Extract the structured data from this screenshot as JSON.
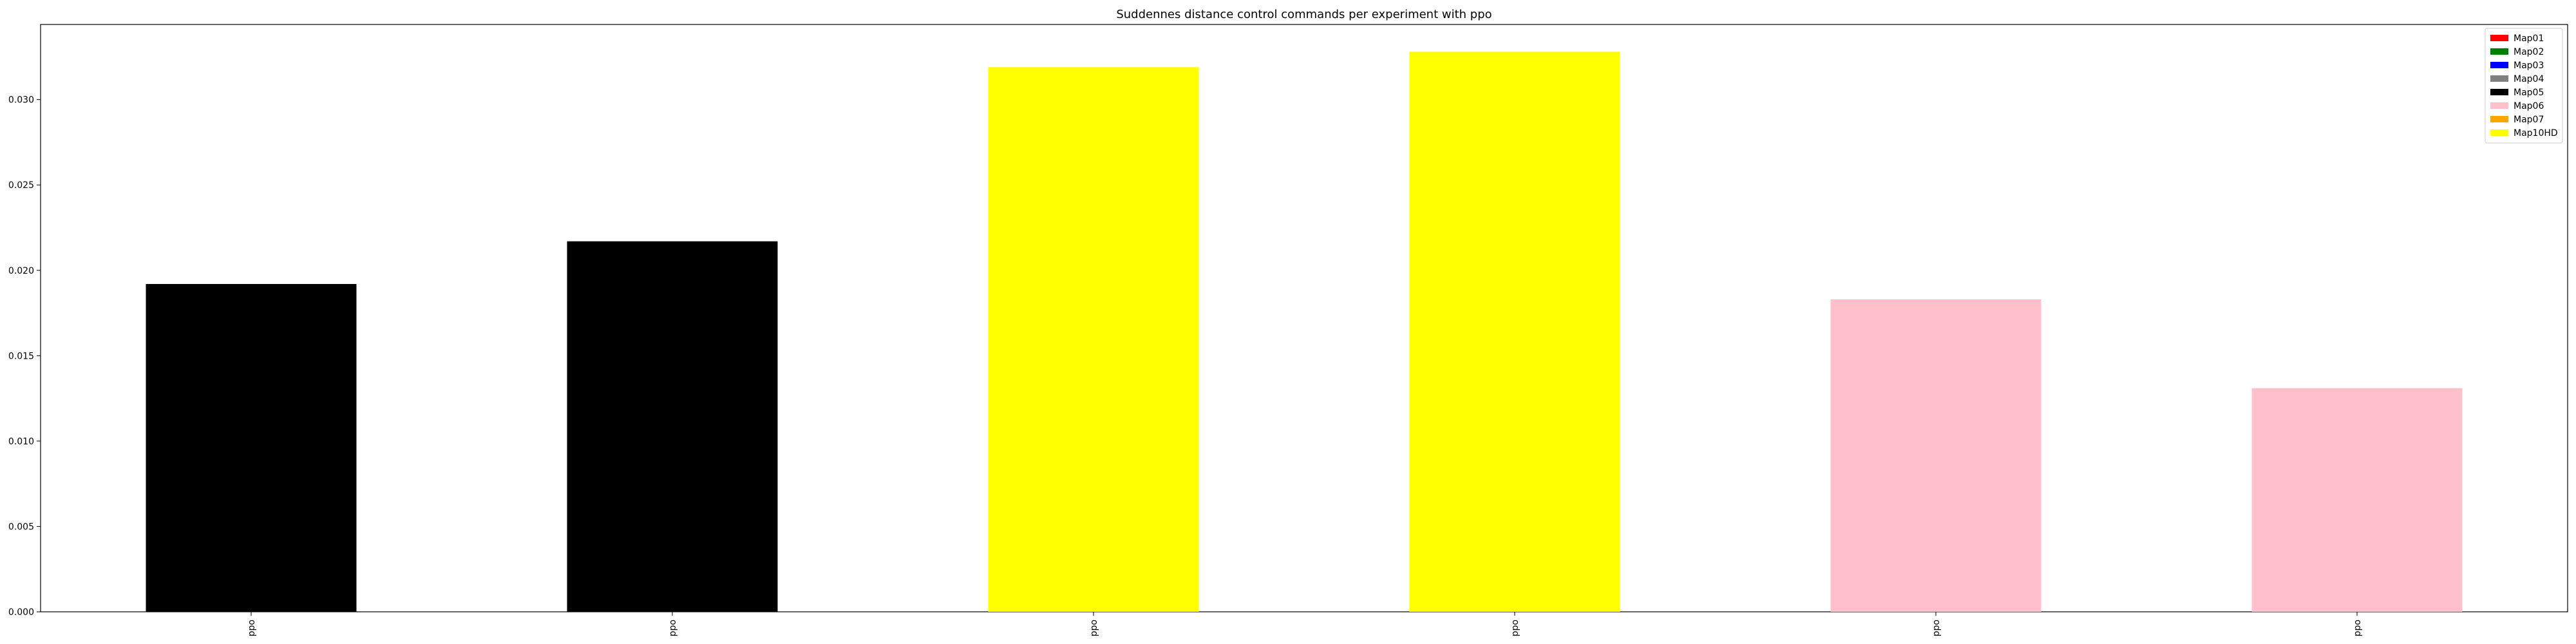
{
  "chart_data": {
    "type": "bar",
    "title": "Suddennes distance control commands per experiment with ppo",
    "xlabel": "",
    "ylabel": "",
    "categories": [
      "ppo",
      "ppo",
      "ppo",
      "ppo",
      "ppo",
      "ppo"
    ],
    "values": [
      0.0192,
      0.0217,
      0.0319,
      0.0328,
      0.0183,
      0.0131
    ],
    "bar_colors": [
      "#000000",
      "#000000",
      "#ffff00",
      "#ffff00",
      "#ffc0cb",
      "#ffc0cb"
    ],
    "ylim": [
      0,
      0.0344
    ],
    "yticks": [
      0.0,
      0.005,
      0.01,
      0.015,
      0.02,
      0.025,
      0.03
    ],
    "ytick_labels": [
      "0.000",
      "0.005",
      "0.010",
      "0.015",
      "0.020",
      "0.025",
      "0.030"
    ],
    "grid": false,
    "legend_position": "top-right",
    "legend": [
      {
        "label": "Map01",
        "color": "#ff0000"
      },
      {
        "label": "Map02",
        "color": "#008000"
      },
      {
        "label": "Map03",
        "color": "#0000ff"
      },
      {
        "label": "Map04",
        "color": "#808080"
      },
      {
        "label": "Map05",
        "color": "#000000"
      },
      {
        "label": "Map06",
        "color": "#ffc0cb"
      },
      {
        "label": "Map07",
        "color": "#ffa500"
      },
      {
        "label": "Map10HD",
        "color": "#ffff00"
      }
    ]
  }
}
